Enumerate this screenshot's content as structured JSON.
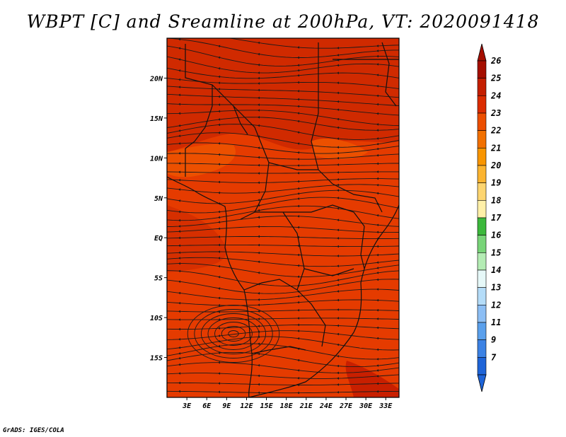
{
  "title": "WBPT [C] and Sreamline at 200hPa, VT: 2020091418",
  "credit": "GrADS: IGES/COLA",
  "map": {
    "lat_ticks": [
      {
        "label": "20N",
        "lat": 20
      },
      {
        "label": "15N",
        "lat": 15
      },
      {
        "label": "10N",
        "lat": 10
      },
      {
        "label": "5N",
        "lat": 5
      },
      {
        "label": "EQ",
        "lat": 0
      },
      {
        "label": "5S",
        "lat": -5
      },
      {
        "label": "10S",
        "lat": -10
      },
      {
        "label": "15S",
        "lat": -15
      }
    ],
    "lon_ticks": [
      {
        "label": "3E",
        "lon": 3
      },
      {
        "label": "6E",
        "lon": 6
      },
      {
        "label": "9E",
        "lon": 9
      },
      {
        "label": "12E",
        "lon": 12
      },
      {
        "label": "15E",
        "lon": 15
      },
      {
        "label": "18E",
        "lon": 18
      },
      {
        "label": "21E",
        "lon": 21
      },
      {
        "label": "24E",
        "lon": 24
      },
      {
        "label": "27E",
        "lon": 27
      },
      {
        "label": "30E",
        "lon": 30
      },
      {
        "label": "33E",
        "lon": 33
      }
    ],
    "lon_range": [
      0,
      35
    ],
    "lat_range": [
      -20,
      25
    ]
  },
  "colorbar": {
    "labels": [
      "26",
      "25",
      "24",
      "23",
      "22",
      "21",
      "20",
      "19",
      "18",
      "17",
      "16",
      "15",
      "14",
      "13",
      "12",
      "11",
      "9",
      "7"
    ],
    "colors": [
      "#a50e00",
      "#c41e00",
      "#db2c00",
      "#ec4e00",
      "#f27000",
      "#f89500",
      "#fbb430",
      "#fdd570",
      "#fff0a8",
      "#3cb83c",
      "#78d478",
      "#b4ecb4",
      "#e6f8f8",
      "#b4dcf8",
      "#8cbef4",
      "#5aa0ec",
      "#3c82e4",
      "#1e64d8"
    ]
  }
}
